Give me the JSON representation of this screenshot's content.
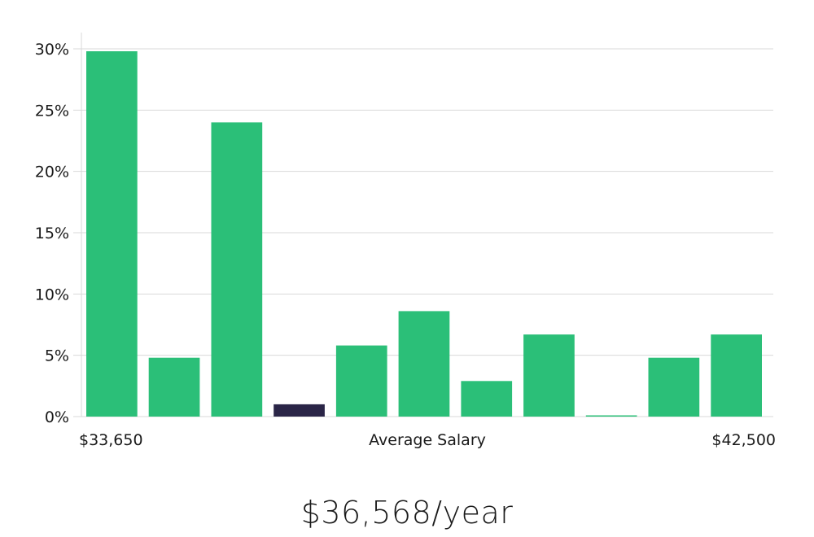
{
  "chart_data": {
    "type": "bar",
    "categories": [
      "1",
      "2",
      "3",
      "4",
      "5",
      "6",
      "7",
      "8",
      "9",
      "10",
      "11"
    ],
    "values": [
      29.8,
      4.8,
      24.0,
      1.0,
      5.8,
      8.6,
      2.9,
      6.7,
      0.05,
      4.8,
      6.7
    ],
    "highlight_index": 3,
    "ylim": [
      0,
      30
    ],
    "yticks": [
      0,
      5,
      10,
      15,
      20,
      25,
      30
    ],
    "ytick_format": "{v}%",
    "grid": true,
    "xlabel": "Average Salary",
    "x_min_label": "$33,650",
    "x_max_label": "$42,500",
    "colors": {
      "bar": "#2bbf78",
      "highlight": "#2a2547"
    }
  },
  "summary": {
    "salary": "$36,568/year"
  }
}
